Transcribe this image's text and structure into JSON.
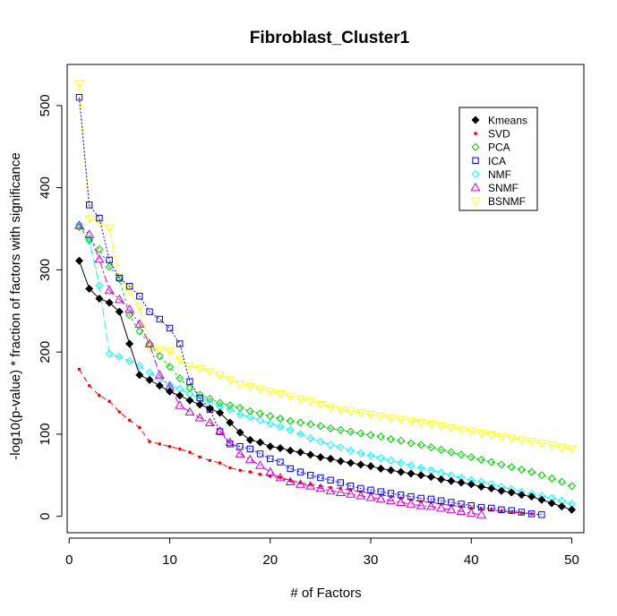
{
  "chart_data": {
    "type": "line",
    "title": "Fibroblast_Cluster1",
    "xlabel": "# of Factors",
    "ylabel": "-log10(p-value) * fraction of factors with significance",
    "xlim": [
      -0.2,
      51.2
    ],
    "ylim": [
      -20,
      550
    ],
    "xticks": [
      0,
      10,
      20,
      30,
      40,
      50
    ],
    "yticks": [
      0,
      100,
      200,
      300,
      400,
      500
    ],
    "legend_position": "top-right",
    "series": [
      {
        "name": "Kmeans",
        "color": "#000000",
        "marker": "diamond-filled",
        "dash": "solid",
        "x": [
          1,
          2,
          3,
          4,
          5,
          6,
          7,
          8,
          9,
          10,
          11,
          12,
          13,
          14,
          15,
          16,
          17,
          18,
          19,
          20,
          21,
          22,
          23,
          24,
          25,
          26,
          27,
          28,
          29,
          30,
          31,
          32,
          33,
          34,
          35,
          36,
          37,
          38,
          39,
          40,
          41,
          42,
          43,
          44,
          45,
          46,
          47,
          48,
          49,
          50
        ],
        "y": [
          311,
          277,
          265,
          260,
          249,
          210,
          172,
          166,
          159,
          152,
          147,
          141,
          136,
          131,
          126,
          114,
          102,
          93,
          90,
          85,
          83,
          80,
          78,
          75,
          72,
          70,
          67,
          65,
          63,
          61,
          58,
          56,
          54,
          52,
          50,
          48,
          45,
          43,
          41,
          39,
          36,
          34,
          31,
          29,
          26,
          24,
          20,
          16,
          12,
          8
        ]
      },
      {
        "name": "SVD",
        "color": "#ff0000",
        "marker": "dot",
        "dash": "6,4",
        "x": [
          1,
          2,
          3,
          4,
          5,
          6,
          7,
          8,
          9,
          10,
          11,
          12,
          13,
          14,
          15,
          16,
          17,
          18,
          19,
          20,
          21,
          22,
          23,
          24,
          25,
          26,
          27,
          28,
          29,
          30,
          31,
          32,
          33,
          34,
          35,
          36,
          37,
          38,
          39,
          40,
          41,
          42,
          43,
          44,
          45,
          46
        ],
        "y": [
          179,
          159,
          147,
          140,
          127,
          117,
          108,
          91,
          88,
          85,
          82,
          78,
          72,
          68,
          65,
          59,
          56,
          54,
          51,
          49,
          47,
          44,
          41,
          39,
          37,
          35,
          34,
          32,
          30,
          28,
          26,
          24,
          22,
          20,
          18,
          17,
          15,
          13,
          12,
          10,
          9,
          8,
          6,
          5,
          4,
          3
        ]
      },
      {
        "name": "PCA",
        "color": "#00cc00",
        "marker": "diamond-open",
        "dash": "3,3",
        "x": [
          1,
          2,
          3,
          4,
          5,
          6,
          7,
          8,
          9,
          10,
          11,
          12,
          13,
          14,
          15,
          16,
          17,
          18,
          19,
          20,
          21,
          22,
          23,
          24,
          25,
          26,
          27,
          28,
          29,
          30,
          31,
          32,
          33,
          34,
          35,
          36,
          37,
          38,
          39,
          40,
          41,
          42,
          43,
          44,
          45,
          46,
          47,
          48,
          49,
          50
        ],
        "y": [
          352,
          337,
          325,
          304,
          289,
          245,
          225,
          210,
          195,
          182,
          168,
          156,
          148,
          143,
          138,
          135,
          132,
          128,
          125,
          122,
          119,
          116,
          114,
          112,
          110,
          107,
          105,
          103,
          101,
          99,
          97,
          94,
          92,
          89,
          87,
          84,
          81,
          78,
          75,
          72,
          69,
          66,
          63,
          60,
          57,
          54,
          50,
          46,
          42,
          37
        ]
      },
      {
        "name": "ICA",
        "color": "#0000ff",
        "marker": "square-open",
        "dash": "2,2",
        "x": [
          1,
          2,
          3,
          4,
          5,
          6,
          7,
          8,
          9,
          10,
          11,
          12,
          13,
          14,
          15,
          16,
          17,
          18,
          19,
          20,
          21,
          22,
          23,
          24,
          25,
          26,
          27,
          28,
          29,
          30,
          31,
          32,
          33,
          34,
          35,
          36,
          37,
          38,
          39,
          40,
          41,
          42,
          43,
          44,
          45,
          46,
          47
        ],
        "y": [
          510,
          379,
          363,
          312,
          290,
          280,
          268,
          249,
          240,
          229,
          210,
          164,
          144,
          130,
          103,
          88,
          85,
          82,
          76,
          70,
          66,
          58,
          54,
          50,
          47,
          44,
          41,
          37,
          34,
          32,
          30,
          28,
          26,
          24,
          22,
          21,
          19,
          17,
          15,
          13,
          11,
          10,
          8,
          7,
          5,
          3,
          2
        ]
      },
      {
        "name": "NMF",
        "color": "#00ffff",
        "marker": "diamond-open",
        "dash": "10,4",
        "x": [
          1,
          2,
          3,
          4,
          5,
          6,
          7,
          8,
          9,
          10,
          11,
          12,
          13,
          14,
          15,
          16,
          17,
          18,
          19,
          20,
          21,
          22,
          23,
          24,
          25,
          26,
          27,
          28,
          29,
          30,
          31,
          32,
          33,
          34,
          35,
          36,
          37,
          38,
          39,
          40,
          41,
          42,
          43,
          44,
          45,
          46,
          47,
          48,
          49,
          50
        ],
        "y": [
          355,
          335,
          281,
          198,
          194,
          189,
          183,
          175,
          167,
          160,
          155,
          149,
          144,
          139,
          134,
          130,
          124,
          121,
          117,
          113,
          109,
          105,
          100,
          95,
          91,
          87,
          84,
          80,
          77,
          74,
          71,
          68,
          65,
          62,
          59,
          56,
          53,
          50,
          47,
          44,
          42,
          39,
          36,
          33,
          30,
          27,
          25,
          22,
          19,
          15
        ]
      },
      {
        "name": "SNMF",
        "color": "#cc00cc",
        "marker": "triangle-up",
        "dash": "8,3,2,3",
        "x": [
          1,
          2,
          3,
          4,
          5,
          6,
          7,
          8,
          9,
          10,
          11,
          12,
          13,
          14,
          15,
          16,
          17,
          18,
          19,
          20,
          21,
          22,
          23,
          24,
          25,
          26,
          27,
          28,
          29,
          30,
          31,
          32,
          33,
          34,
          35,
          36,
          37,
          38,
          39,
          40,
          41
        ],
        "y": [
          354,
          343,
          313,
          275,
          264,
          252,
          234,
          210,
          172,
          158,
          135,
          127,
          120,
          114,
          104,
          90,
          76,
          69,
          62,
          54,
          47,
          42,
          39,
          37,
          34,
          31,
          29,
          27,
          25,
          23,
          21,
          19,
          17,
          15,
          13,
          12,
          10,
          8,
          6,
          4,
          2
        ]
      },
      {
        "name": "BSNMF",
        "color": "#ffff00",
        "marker": "triangle-down",
        "dash": "12,4",
        "x": [
          1,
          2,
          3,
          4,
          5,
          6,
          7,
          8,
          9,
          10,
          11,
          12,
          13,
          14,
          15,
          16,
          17,
          18,
          19,
          20,
          21,
          22,
          23,
          24,
          25,
          26,
          27,
          28,
          29,
          30,
          31,
          32,
          33,
          34,
          35,
          36,
          37,
          38,
          39,
          40,
          41,
          42,
          43,
          44,
          45,
          46,
          47,
          48,
          49,
          50
        ],
        "y": [
          527,
          362,
          358,
          351,
          290,
          275,
          255,
          205,
          203,
          201,
          190,
          183,
          180,
          176,
          172,
          166,
          161,
          158,
          155,
          152,
          149,
          146,
          143,
          140,
          136,
          132,
          130,
          128,
          126,
          124,
          122,
          120,
          118,
          116,
          114,
          112,
          110,
          108,
          106,
          104,
          101,
          99,
          97,
          95,
          93,
          91,
          89,
          87,
          84,
          82
        ]
      }
    ]
  }
}
